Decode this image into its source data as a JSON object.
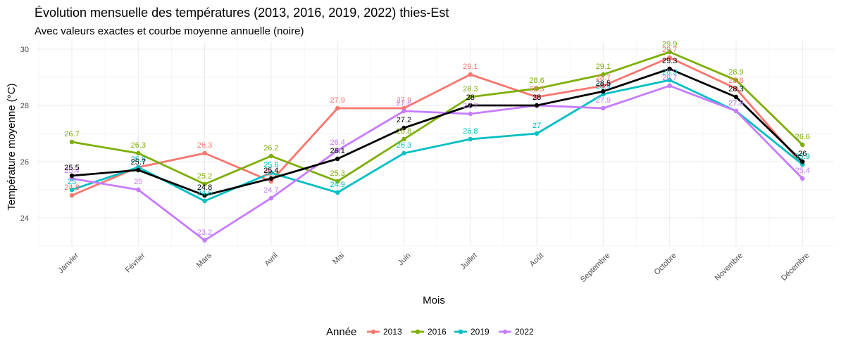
{
  "chart_data": {
    "type": "line",
    "title": "Évolution mensuelle des températures (2013, 2016, 2019, 2022) thies-Est",
    "subtitle": "Avec valeurs exactes et courbe moyenne annuelle (noire)",
    "xlabel": "Mois",
    "ylabel": "Température moyenne (°C)",
    "ylim": [
      22.9,
      30.2
    ],
    "yticks": [
      24,
      26,
      28,
      30
    ],
    "grid": true,
    "legend_position": "bottom",
    "legend_title": "Année",
    "categories": [
      "Janvier",
      "Février",
      "Mars",
      "Avril",
      "Mai",
      "Juin",
      "Juillet",
      "Août",
      "Septembre",
      "Octobre",
      "Novembre",
      "Décembre"
    ],
    "series": [
      {
        "name": "2013",
        "color": "#F8766D",
        "values": [
          24.8,
          25.8,
          26.3,
          25.3,
          27.9,
          27.9,
          29.1,
          28.3,
          28.7,
          29.7,
          28.6,
          25.9
        ]
      },
      {
        "name": "2016",
        "color": "#7CAE00",
        "values": [
          26.7,
          26.3,
          25.2,
          26.2,
          25.3,
          26.8,
          28.3,
          28.6,
          29.1,
          29.9,
          28.9,
          26.6
        ]
      },
      {
        "name": "2019",
        "color": "#00BFC4",
        "values": [
          25.0,
          25.8,
          24.6,
          25.6,
          24.9,
          26.3,
          26.8,
          27.0,
          28.4,
          28.9,
          27.8,
          25.9
        ]
      },
      {
        "name": "2022",
        "color": "#C77CFF",
        "values": [
          25.4,
          25.0,
          23.2,
          24.7,
          26.4,
          27.8,
          27.7,
          28.0,
          27.9,
          28.7,
          27.8,
          25.4
        ]
      }
    ],
    "mean_series": {
      "color": "#000000",
      "values": [
        25.5,
        25.7,
        24.8,
        25.4,
        26.1,
        27.2,
        28.0,
        28.0,
        28.5,
        29.3,
        28.3,
        26.0
      ]
    }
  }
}
